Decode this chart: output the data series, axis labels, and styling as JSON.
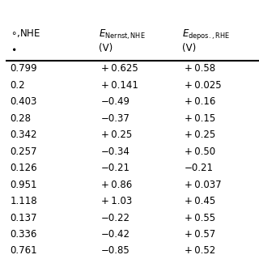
{
  "col2_header_line1": "$E_{\\mathrm{Nernst,NHE}}$",
  "col2_header_line2": "(V)",
  "col3_header_line1": "$E_{\\mathrm{depos.,RHE}}$",
  "col3_header_line2": "(V)",
  "col1_values": [
    "0.799",
    "0.2",
    "0.403",
    "0.28",
    "0.342",
    "0.257",
    "0.126",
    "0.951",
    "1.118",
    "0.137",
    "0.336",
    "0.761"
  ],
  "col2_values": [
    "+ 0.625",
    "+ 0.141",
    "−0.49",
    "−0.37",
    "+ 0.25",
    "−0.34",
    "−0.21",
    "+ 0.86",
    "+ 1.03",
    "−0.22",
    "−0.42",
    "−0.85"
  ],
  "col3_values": [
    "+ 0.58",
    "+ 0.025",
    "+ 0.16",
    "+ 0.15",
    "+ 0.25",
    "+ 0.50",
    "−0.21",
    "+ 0.037",
    "+ 0.45",
    "+ 0.55",
    "+ 0.57",
    "+ 0.52"
  ],
  "background_color": "#ffffff",
  "text_color": "#000000",
  "figsize": [
    3.2,
    3.2
  ],
  "dpi": 100
}
